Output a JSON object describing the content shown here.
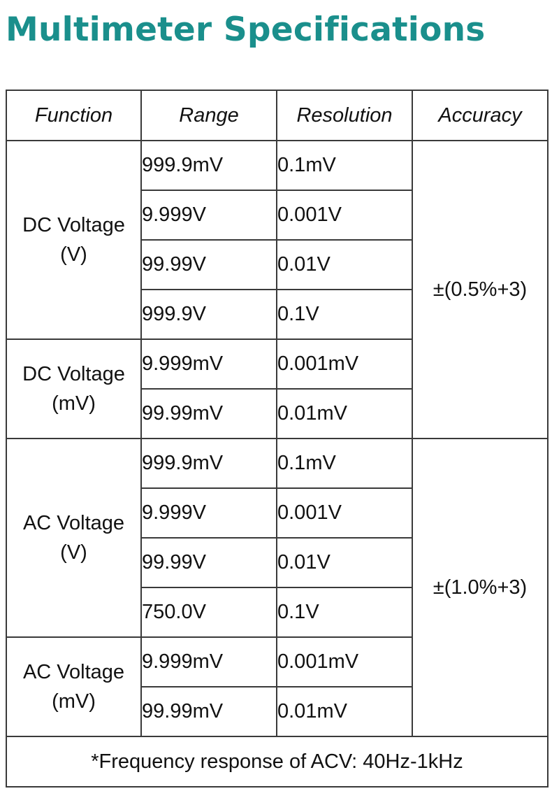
{
  "title": "Multimeter Specifications",
  "table": {
    "headers": [
      "Function",
      "Range",
      "Resolution",
      "Accuracy"
    ],
    "groups": [
      {
        "function_line1": "DC Voltage",
        "function_line2": "(V)",
        "rows": [
          {
            "range": "999.9mV",
            "resolution": "0.1mV"
          },
          {
            "range": "9.999V",
            "resolution": "0.001V"
          },
          {
            "range": "99.99V",
            "resolution": "0.01V"
          },
          {
            "range": "999.9V",
            "resolution": "0.1V"
          }
        ]
      },
      {
        "function_line1": "DC Voltage",
        "function_line2": "(mV)",
        "rows": [
          {
            "range": "9.999mV",
            "resolution": "0.001mV"
          },
          {
            "range": "99.99mV",
            "resolution": "0.01mV"
          }
        ]
      },
      {
        "function_line1": "AC Voltage",
        "function_line2": "(V)",
        "rows": [
          {
            "range": "999.9mV",
            "resolution": "0.1mV"
          },
          {
            "range": "9.999V",
            "resolution": "0.001V"
          },
          {
            "range": "99.99V",
            "resolution": "0.01V"
          },
          {
            "range": "750.0V",
            "resolution": "0.1V"
          }
        ]
      },
      {
        "function_line1": "AC Voltage",
        "function_line2": "(mV)",
        "rows": [
          {
            "range": "9.999mV",
            "resolution": "0.001mV"
          },
          {
            "range": "99.99mV",
            "resolution": "0.01mV"
          }
        ]
      }
    ],
    "accuracy_dc": "±(0.5%+3)",
    "accuracy_ac": "±(1.0%+3)",
    "footnote": "*Frequency response of ACV: 40Hz-1kHz"
  },
  "colors": {
    "title": "#1a8f8c",
    "border": "#3a3a3a",
    "text": "#111111"
  }
}
